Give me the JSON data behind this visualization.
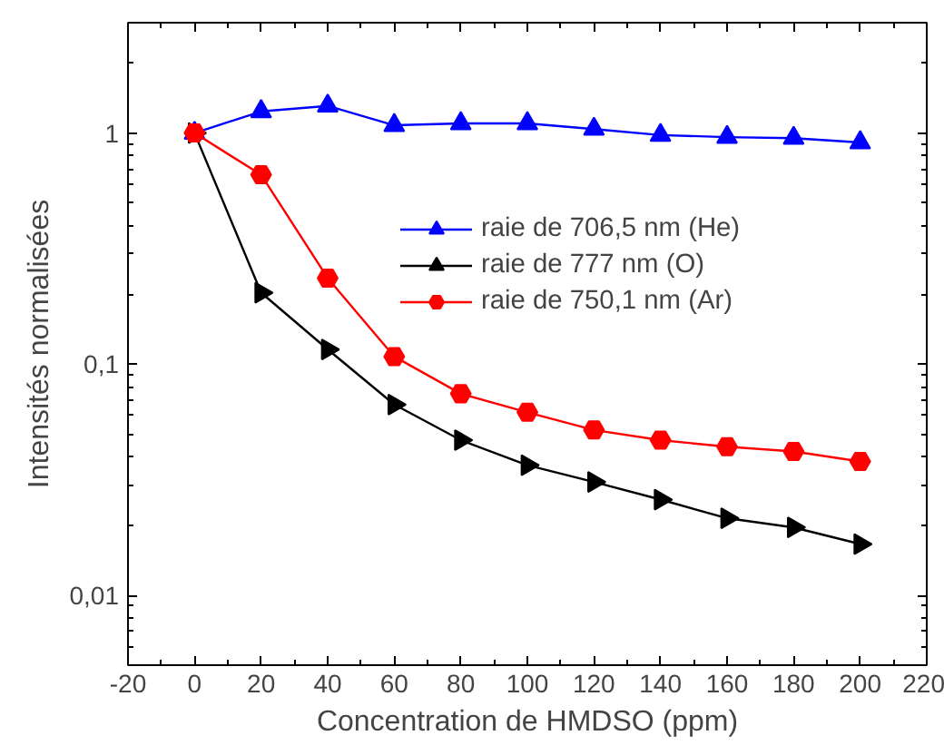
{
  "chart_data": {
    "type": "line",
    "xlabel": "Concentration de HMDSO (ppm)",
    "ylabel": "Intensités normalisées",
    "x": [
      0,
      20,
      40,
      60,
      80,
      100,
      120,
      140,
      160,
      180,
      200
    ],
    "series": [
      {
        "name": "raie de 706,5 nm (He)",
        "color": "#0000ff",
        "marker": "triangle",
        "values": [
          1,
          1.24,
          1.31,
          1.08,
          1.1,
          1.1,
          1.04,
          0.98,
          0.96,
          0.95,
          0.91
        ]
      },
      {
        "name": "raie de 777 nm (O)",
        "color": "#000000",
        "marker": "triangle_right",
        "values": [
          1,
          0.204,
          0.116,
          0.067,
          0.047,
          0.0366,
          0.031,
          0.026,
          0.0216,
          0.0197,
          0.0167
        ]
      },
      {
        "name": "raie de 750,1 nm (Ar)",
        "color": "#ff0000",
        "marker": "circle",
        "values": [
          1,
          0.66,
          0.236,
          0.108,
          0.0746,
          0.062,
          0.052,
          0.047,
          0.044,
          0.042,
          0.038
        ]
      }
    ],
    "log": "y",
    "xlim": [
      -20,
      220
    ],
    "xticks": [
      -20,
      0,
      20,
      40,
      60,
      80,
      100,
      120,
      140,
      160,
      180,
      200,
      220
    ],
    "ylim": [
      0.005,
      3
    ],
    "yticks": [
      {
        "value": 0.01,
        "label": "0,01"
      },
      {
        "value": 0.1,
        "label": "0,1"
      },
      1
    ],
    "legend": "right",
    "grid": false,
    "line_style": "solid"
  }
}
